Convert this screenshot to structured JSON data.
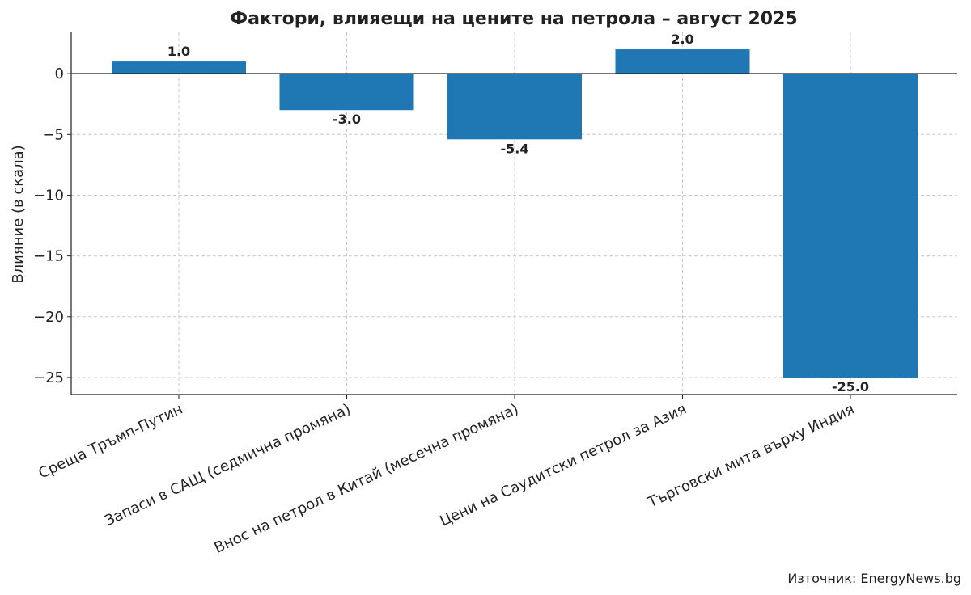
{
  "chart_data": {
    "type": "bar",
    "title": "Фактори, влияещи на цените на петрола – август 2025",
    "xlabel": "",
    "ylabel": "Влияние (в скала)",
    "categories": [
      "Среща Тръмп-Путин",
      "Запаси в САЩ (седмична промяна)",
      "Внос на петрол в Китай (месечна промяна)",
      "Цени на Саудитски петрол за Азия",
      "Търговски мита върху Индия"
    ],
    "values": [
      1.0,
      -3.0,
      -5.4,
      2.0,
      -25.0
    ],
    "data_labels": [
      "1.0",
      "-3.0",
      "-5.4",
      "2.0",
      "-25.0"
    ],
    "ylim": [
      -26.4,
      3.4
    ],
    "yticks": [
      0,
      -5,
      -10,
      -15,
      -20,
      -25
    ],
    "ytick_labels": [
      "0",
      "−5",
      "−10",
      "−15",
      "−20",
      "−25"
    ],
    "grid": true,
    "bar_color": "#1f77b4",
    "source": "Източник: EnergyNews.bg"
  }
}
